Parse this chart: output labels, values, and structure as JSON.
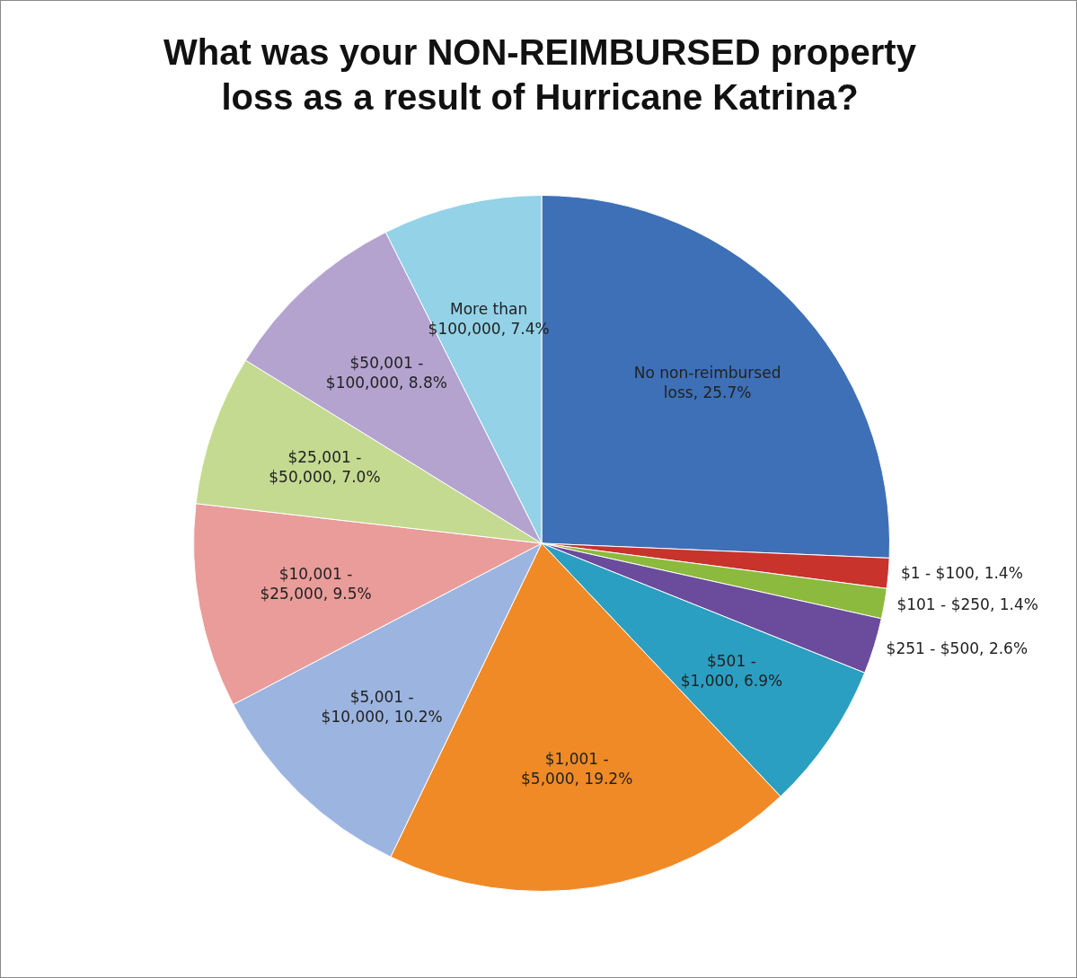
{
  "chart_data": {
    "type": "pie",
    "title": "What was your NON-REIMBURSED property loss as a result of Hurricane Katrina?",
    "categories": [
      "No non-reimbursed loss",
      "$1 - $100",
      "$101 - $250",
      "$251 - $500",
      "$501 - $1,000",
      "$1,001 - $5,000",
      "$5,001 - $10,000",
      "$10,001 - $25,000",
      "$25,001 - $50,000",
      "$50,001 - $100,000",
      "More than $100,000"
    ],
    "values": [
      25.7,
      1.4,
      1.4,
      2.6,
      6.9,
      19.2,
      10.2,
      9.5,
      7.0,
      8.8,
      7.4
    ],
    "value_labels": [
      "25.7%",
      "1.4%",
      "1.4%",
      "2.6%",
      "6.9%",
      "19.2%",
      "10.2%",
      "9.5%",
      "7.0%",
      "8.8%",
      "7.4%"
    ],
    "colors": [
      "#3d70b6",
      "#c8332c",
      "#8cba3e",
      "#6b4b9c",
      "#2b9fc2",
      "#f08a26",
      "#9cb4e0",
      "#e99c99",
      "#c4da90",
      "#b4a3cf",
      "#93d2e7"
    ],
    "legend": false
  }
}
